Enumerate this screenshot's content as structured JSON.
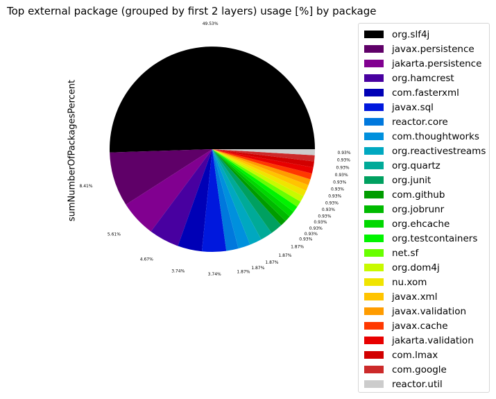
{
  "chart_data": {
    "type": "pie",
    "title": "Top external package (grouped by first 2 layers) usage [%] by package",
    "ylabel": "sumNumberOfPackagesPercent",
    "legend_position": "right",
    "slices": [
      {
        "name": "org.slf4j",
        "value": 49.53,
        "label": "49.53%",
        "color": "#000000"
      },
      {
        "name": "javax.persistence",
        "value": 8.41,
        "label": "8.41%",
        "color": "#5f0068"
      },
      {
        "name": "jakarta.persistence",
        "value": 5.61,
        "label": "5.61%",
        "color": "#810090"
      },
      {
        "name": "org.hamcrest",
        "value": 4.67,
        "label": "4.67%",
        "color": "#4800a0"
      },
      {
        "name": "com.fasterxml",
        "value": 3.74,
        "label": "3.74%",
        "color": "#0000b6"
      },
      {
        "name": "javax.sql",
        "value": 3.74,
        "label": "3.74%",
        "color": "#0018dd"
      },
      {
        "name": "reactor.core",
        "value": 1.87,
        "label": "1.87%",
        "color": "#0078dd"
      },
      {
        "name": "com.thoughtworks",
        "value": 1.87,
        "label": "1.87%",
        "color": "#0090dd"
      },
      {
        "name": "org.reactivestreams",
        "value": 1.87,
        "label": "1.87%",
        "color": "#00a8c0"
      },
      {
        "name": "org.quartz",
        "value": 1.87,
        "label": "1.87%",
        "color": "#00aa98"
      },
      {
        "name": "org.junit",
        "value": 1.87,
        "label": "1.87%",
        "color": "#00a060"
      },
      {
        "name": "com.github",
        "value": 0.93,
        "label": "0.93%",
        "color": "#009c00"
      },
      {
        "name": "org.jobrunr",
        "value": 0.93,
        "label": "0.93%",
        "color": "#00ba00"
      },
      {
        "name": "org.ehcache",
        "value": 0.93,
        "label": "0.93%",
        "color": "#00d800"
      },
      {
        "name": "org.testcontainers",
        "value": 0.93,
        "label": "0.93%",
        "color": "#00f400"
      },
      {
        "name": "net.sf",
        "value": 0.93,
        "label": "0.93%",
        "color": "#68ff00"
      },
      {
        "name": "org.dom4j",
        "value": 0.93,
        "label": "0.93%",
        "color": "#c8fa00"
      },
      {
        "name": "nu.xom",
        "value": 0.93,
        "label": "0.93%",
        "color": "#f0e400"
      },
      {
        "name": "javax.xml",
        "value": 0.93,
        "label": "0.93%",
        "color": "#ffc400"
      },
      {
        "name": "javax.validation",
        "value": 0.93,
        "label": "0.93%",
        "color": "#ff9c00"
      },
      {
        "name": "javax.cache",
        "value": 0.93,
        "label": "0.93%",
        "color": "#ff3800"
      },
      {
        "name": "jakarta.validation",
        "value": 0.93,
        "label": "0.93%",
        "color": "#e80000"
      },
      {
        "name": "com.lmax",
        "value": 0.93,
        "label": "0.93%",
        "color": "#d20000"
      },
      {
        "name": "com.google",
        "value": 0.93,
        "label": "0.93%",
        "color": "#cc2a2a"
      },
      {
        "name": "reactor.util",
        "value": 0.93,
        "label": "0.93%",
        "color": "#cccccc"
      }
    ]
  }
}
